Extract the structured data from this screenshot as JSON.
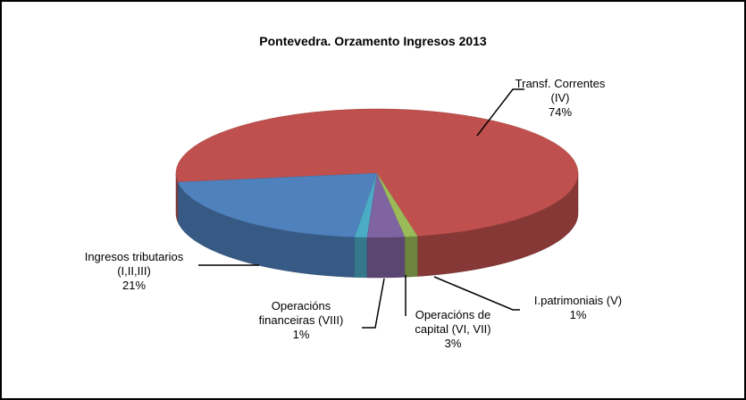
{
  "chart_data": {
    "type": "pie",
    "title": "Pontevedra. Orzamento Ingresos 2013",
    "categories": [
      "Transf. Correntes (IV)",
      "Ingresos tributarios (I,II,III)",
      "Operacións financeiras (VIII)",
      "Operacións de capital (VI, VII)",
      "I.patrimoniais (V)"
    ],
    "values": [
      74,
      21,
      1,
      3,
      1
    ],
    "value_labels": [
      "74%",
      "21%",
      "1%",
      "3%",
      "1%"
    ],
    "colors": [
      "#c0504d",
      "#4f81bd",
      "#4bacc6",
      "#8064a2",
      "#9bbb59"
    ]
  }
}
